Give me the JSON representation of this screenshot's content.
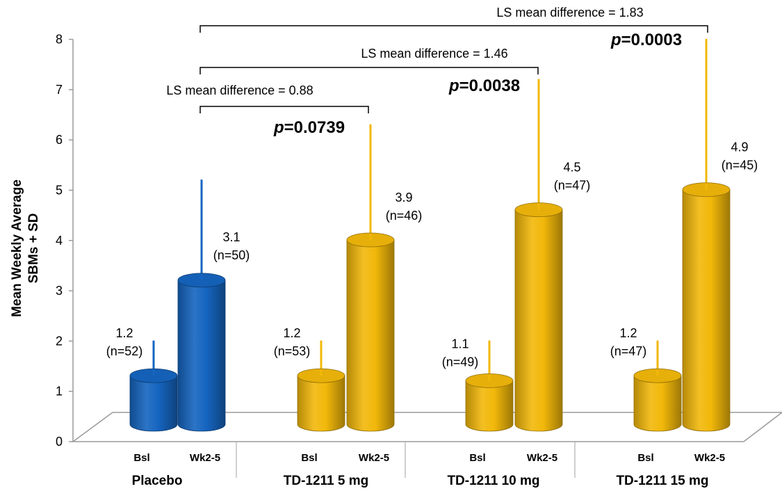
{
  "chart_data": {
    "type": "bar",
    "ylabel_lines": [
      "Mean Weekly Average",
      "SBMs + SD"
    ],
    "ylim": [
      0,
      8
    ],
    "yticks": [
      "0",
      "1",
      "2",
      "3",
      "4",
      "5",
      "6",
      "7",
      "8"
    ],
    "subcategories": [
      "Bsl",
      "Wk2-5"
    ],
    "groups": [
      {
        "name": "Placebo",
        "color": "#1565c0",
        "bars": [
          {
            "sub": "Bsl",
            "value": 1.2,
            "sd_top": 1.9,
            "label": "1.2",
            "n": "(n=52)"
          },
          {
            "sub": "Wk2-5",
            "value": 3.1,
            "sd_top": 5.1,
            "label": "3.1",
            "n": "(n=50)"
          }
        ]
      },
      {
        "name": "TD-1211 5 mg",
        "color": "#f2b80a",
        "bars": [
          {
            "sub": "Bsl",
            "value": 1.2,
            "sd_top": 1.9,
            "label": "1.2",
            "n": "(n=53)"
          },
          {
            "sub": "Wk2-5",
            "value": 3.9,
            "sd_top": 6.2,
            "label": "3.9",
            "n": "(n=46)"
          }
        ]
      },
      {
        "name": "TD-1211 10 mg",
        "color": "#f2b80a",
        "bars": [
          {
            "sub": "Bsl",
            "value": 1.1,
            "sd_top": 1.9,
            "label": "1.1",
            "n": "(n=49)"
          },
          {
            "sub": "Wk2-5",
            "value": 4.5,
            "sd_top": 7.1,
            "label": "4.5",
            "n": "(n=47)"
          }
        ]
      },
      {
        "name": "TD-1211 15 mg",
        "color": "#f2b80a",
        "bars": [
          {
            "sub": "Bsl",
            "value": 1.2,
            "sd_top": 1.9,
            "label": "1.2",
            "n": "(n=47)"
          },
          {
            "sub": "Wk2-5",
            "value": 4.9,
            "sd_top": 7.9,
            "label": "4.9",
            "n": "(n=45)"
          }
        ]
      }
    ],
    "comparisons": [
      {
        "text": "LS mean difference = 0.88",
        "p_label": "p",
        "p_value": "=0.0739",
        "to_group": 1
      },
      {
        "text": "LS mean difference = 1.46",
        "p_label": "p",
        "p_value": "=0.0038",
        "to_group": 2
      },
      {
        "text": "LS mean difference = 1.83",
        "p_label": "p",
        "p_value": "=0.0003",
        "to_group": 3
      }
    ]
  }
}
